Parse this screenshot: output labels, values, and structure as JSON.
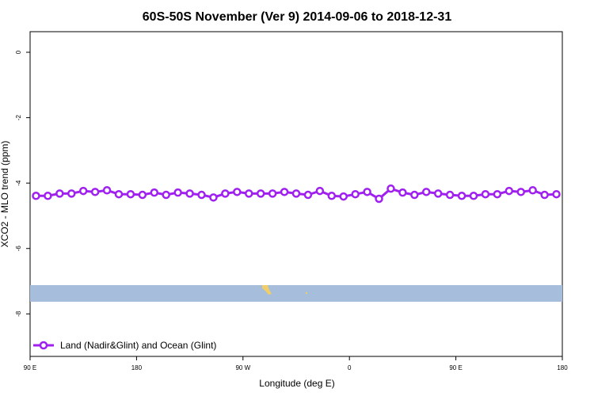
{
  "chart_data": {
    "type": "line",
    "title": "60S-50S November (Ver 9)   2014-09-06 to 2018-12-31",
    "x_label": "Longitude (deg E)",
    "y_label": "XCO2 - MLO trend (ppm)",
    "xlim": [
      90,
      540
    ],
    "xticks": [
      {
        "value": 90,
        "label": "90 E"
      },
      180,
      {
        "value": 270,
        "label": "90 W"
      },
      {
        "value": 360,
        "label": "0"
      },
      {
        "value": 450,
        "label": "90 E"
      },
      {
        "value": 540,
        "label": "180"
      }
    ],
    "ylim": [
      -9.3,
      0.63
    ],
    "yticks": [
      0,
      -2,
      -4,
      -6,
      -8
    ],
    "legend_position": "bottom-left",
    "x": [
      95,
      105,
      115,
      125,
      135,
      145,
      155,
      165,
      175,
      185,
      195,
      205,
      215,
      225,
      235,
      245,
      255,
      265,
      275,
      285,
      295,
      305,
      315,
      325,
      335,
      345,
      355,
      365,
      375,
      385,
      395,
      405,
      415,
      425,
      435,
      445,
      455,
      465,
      475,
      485,
      495,
      505,
      515,
      525,
      535
    ],
    "series": [
      {
        "name": "Land (Nadir&Glint) and Ocean (Glint)",
        "color": "#a020f0",
        "values": [
          -4.39,
          -4.39,
          -4.32,
          -4.32,
          -4.24,
          -4.27,
          -4.22,
          -4.34,
          -4.34,
          -4.36,
          -4.29,
          -4.36,
          -4.29,
          -4.32,
          -4.36,
          -4.44,
          -4.32,
          -4.27,
          -4.32,
          -4.32,
          -4.32,
          -4.27,
          -4.32,
          -4.36,
          -4.24,
          -4.39,
          -4.41,
          -4.34,
          -4.27,
          -4.48,
          -4.17,
          -4.29,
          -4.36,
          -4.27,
          -4.32,
          -4.36,
          -4.39,
          -4.39,
          -4.34,
          -4.34,
          -4.24,
          -4.27,
          -4.22,
          -4.36,
          -4.34
        ]
      }
    ]
  }
}
